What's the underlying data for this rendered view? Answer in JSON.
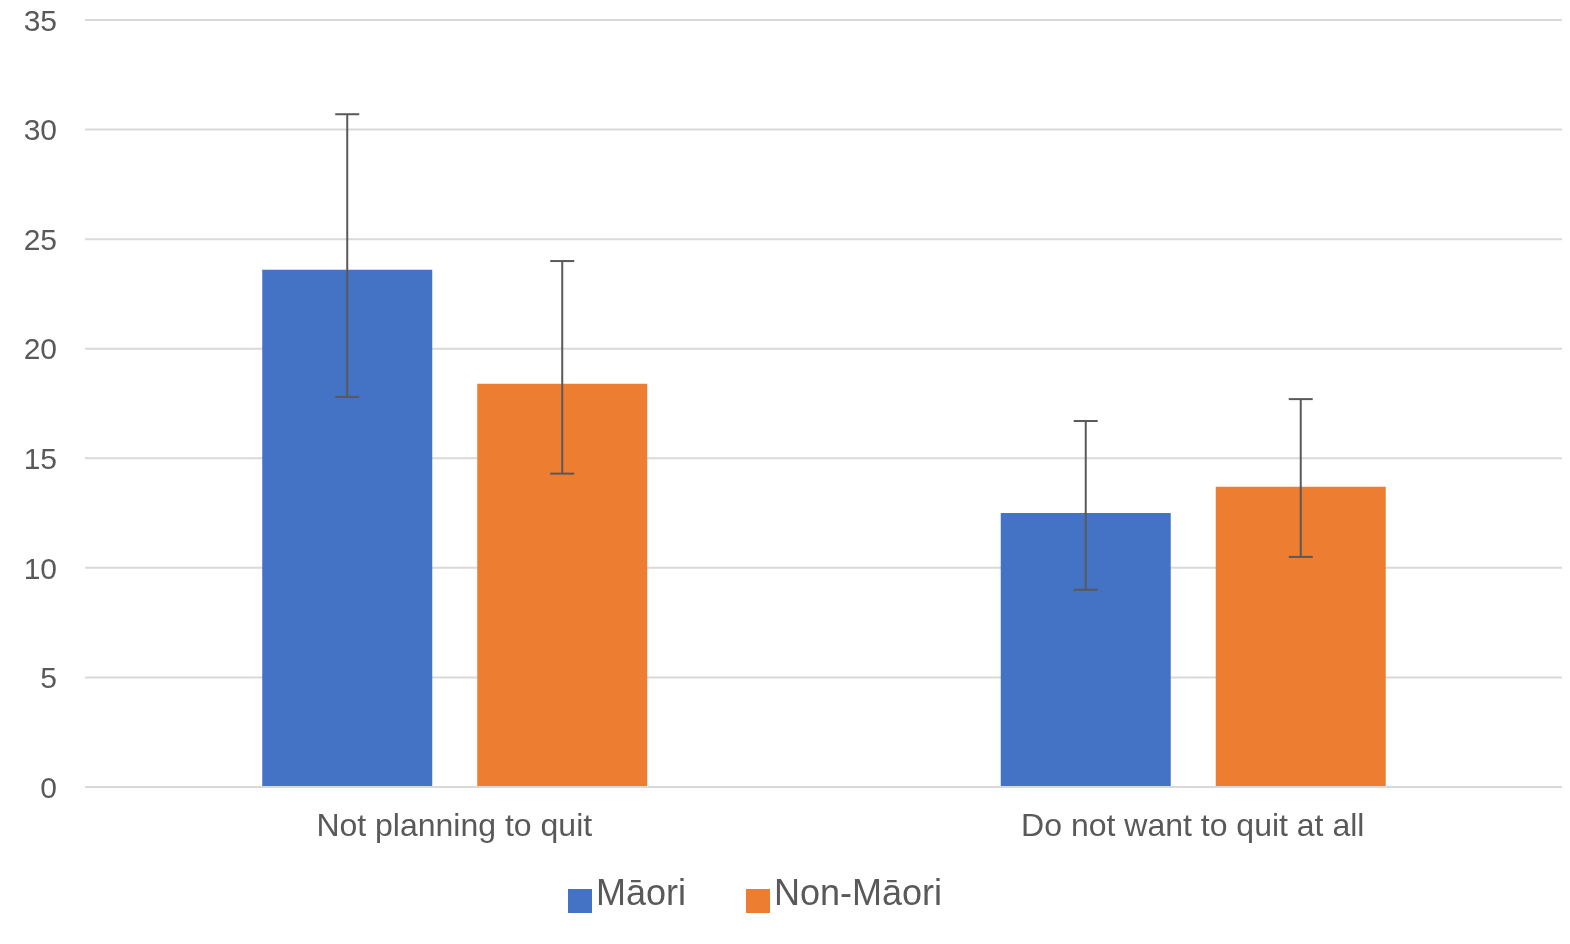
{
  "chart_data": {
    "type": "bar",
    "categories": [
      "Not planning to quit",
      "Do not want to quit at all"
    ],
    "series": [
      {
        "name": "Māori",
        "color": "#4472c4",
        "values": [
          23.6,
          12.5
        ],
        "errors": [
          [
            17.8,
            30.7
          ],
          [
            9.0,
            16.7
          ]
        ]
      },
      {
        "name": "Non-Māori",
        "color": "#ed7d31",
        "values": [
          18.4,
          13.7
        ],
        "errors": [
          [
            14.3,
            24.0
          ],
          [
            10.5,
            17.7
          ]
        ]
      }
    ],
    "ylim": [
      0,
      35
    ],
    "yticks": [
      0,
      5,
      10,
      15,
      20,
      25,
      30,
      35
    ],
    "grid": "y",
    "legend": "bottom"
  }
}
